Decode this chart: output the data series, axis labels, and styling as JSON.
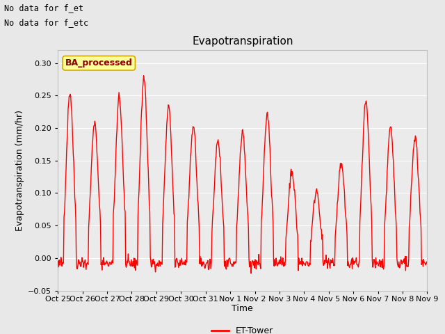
{
  "title": "Evapotranspiration",
  "ylabel": "Evapotranspiration (mm/hr)",
  "xlabel": "Time",
  "ylim": [
    -0.05,
    0.32
  ],
  "yticks": [
    -0.05,
    0.0,
    0.05,
    0.1,
    0.15,
    0.2,
    0.25,
    0.3
  ],
  "line_color": "#FF0000",
  "line_width": 1.0,
  "fig_bg_color": "#E8E8E8",
  "plot_bg_color": "#EBEBEB",
  "grid_color": "#FFFFFF",
  "top_left_text1": "No data for f_et",
  "top_left_text2": "No data for f_etc",
  "legend_label": "ET-Tower",
  "legend_box_label": "BA_processed",
  "x_tick_labels": [
    "Oct 25",
    "Oct 26",
    "Oct 27",
    "Oct 28",
    "Oct 29",
    "Oct 30",
    "Oct 31",
    "Nov 1",
    "Nov 2",
    "Nov 3",
    "Nov 4",
    "Nov 5",
    "Nov 6",
    "Nov 7",
    "Nov 8",
    "Nov 9"
  ],
  "num_days": 15,
  "daily_peaks": [
    0.255,
    0.21,
    0.248,
    0.278,
    0.232,
    0.205,
    0.183,
    0.197,
    0.222,
    0.135,
    0.105,
    0.145,
    0.24,
    0.2,
    0.187
  ],
  "title_fontsize": 11,
  "axis_label_fontsize": 9,
  "tick_fontsize": 8,
  "annotation_fontsize": 9,
  "legend_fontsize": 9
}
